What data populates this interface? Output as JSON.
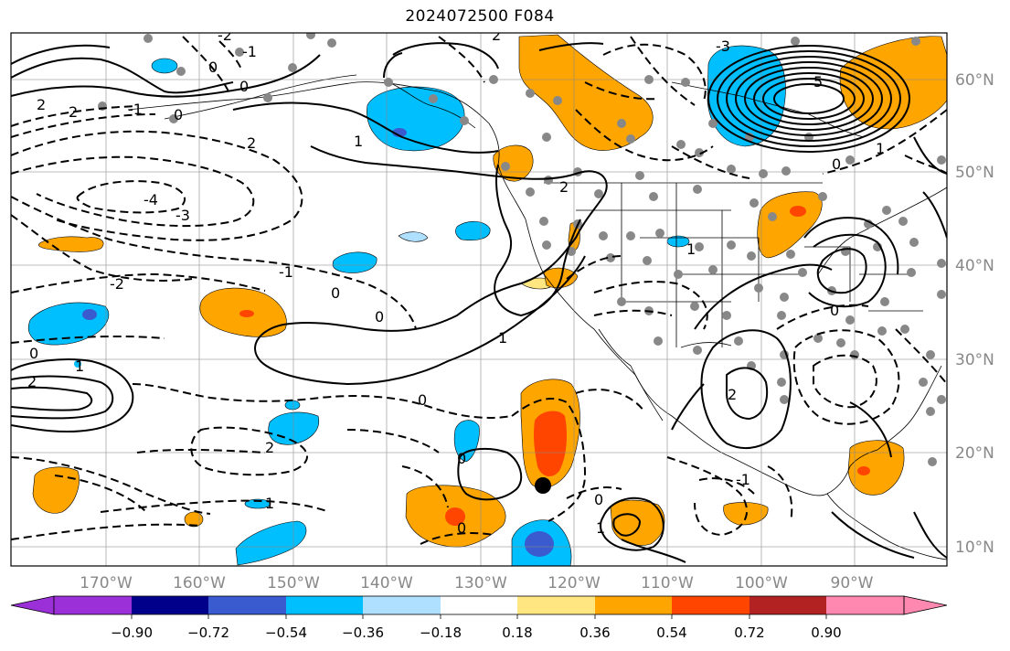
{
  "title": "2024072500 F084",
  "axes": {
    "lon_labels": [
      "170°W",
      "160°W",
      "150°W",
      "140°W",
      "130°W",
      "120°W",
      "110°W",
      "100°W",
      "90°W"
    ],
    "lat_labels": [
      "60°N",
      "50°N",
      "40°N",
      "30°N",
      "20°N",
      "10°N"
    ]
  },
  "colorbar": {
    "tick_labels": [
      "−0.90",
      "−0.72",
      "−0.54",
      "−0.36",
      "−0.18",
      "0.18",
      "0.36",
      "0.54",
      "0.72",
      "0.90"
    ],
    "colors": [
      "#9b30d8",
      "#00008b",
      "#3a5bd0",
      "#00bfff",
      "#b0e0ff",
      "#ffffff",
      "#ffe680",
      "#ffa500",
      "#ff4500",
      "#b22222",
      "#ff88b0"
    ]
  },
  "contour_labels": {
    "neg_2_a": "-2",
    "neg_1_a": "-1",
    "zero_a": "0",
    "neg_2_b": "2",
    "neg_2_c": "2",
    "neg_1_b": "-1",
    "zero_b": "0",
    "neg_1_c": "1",
    "neg_2_d": "2",
    "neg_4": "-4",
    "neg_3": "-3",
    "neg_2_e": "-2",
    "neg_1_d": "-1",
    "zero_c": "0",
    "zero_d": "0",
    "one_a": "1",
    "zero_e": "0",
    "neg_2_f": "2",
    "one_b": "1",
    "zero_f": "0",
    "two_a": "2",
    "zero_g": "0",
    "zero_h": "0",
    "neg_1_e": "1",
    "neg_3_b": "-3",
    "five": "5",
    "one_c": "1",
    "neg_1_f": "1",
    "two_b": "2",
    "two_c": "2",
    "zero_i": "0",
    "neg_1_g": "1",
    "zero_j": "0",
    "neg_2_g": "2",
    "one_d": "-1",
    "zero_k": "0",
    "one_e": "1",
    "zero_l": "0"
  }
}
